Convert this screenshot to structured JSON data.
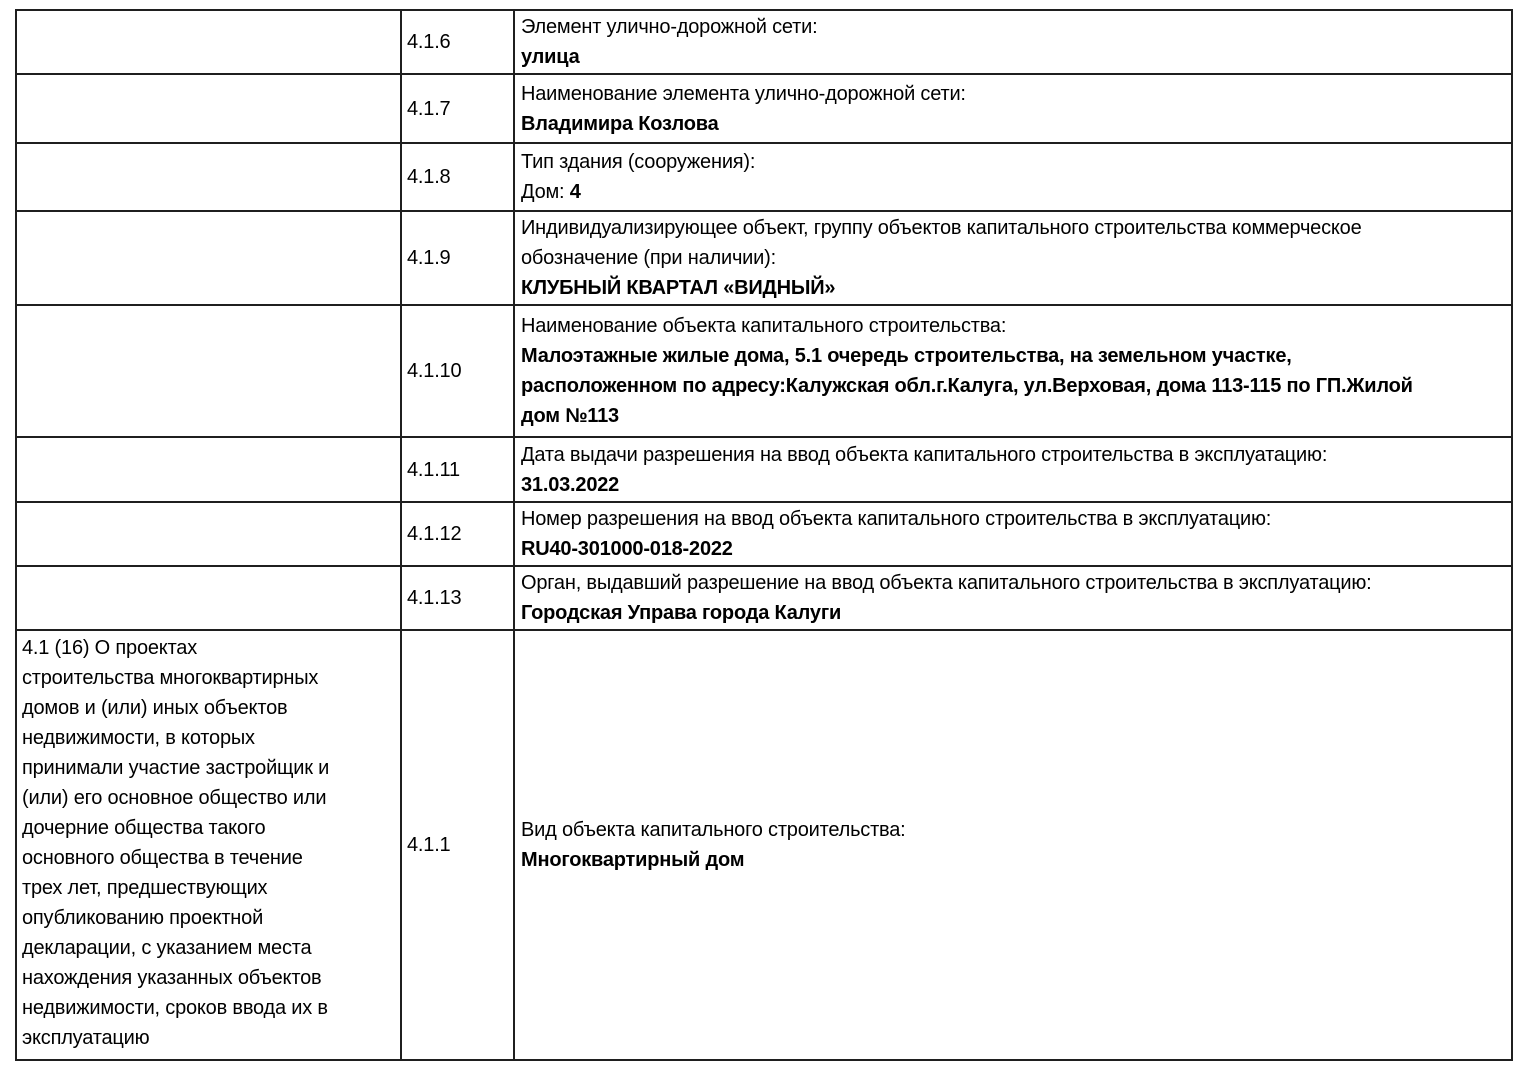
{
  "colors": {
    "text": "#000000",
    "border": "#1f1f1f",
    "background": "#ffffff"
  },
  "table": {
    "rows": [
      {
        "section": "",
        "code": "4.1.6",
        "label": "Элемент улично-дорожной сети:",
        "value_prefix": "",
        "value": "улица"
      },
      {
        "section": "",
        "code": "4.1.7",
        "label": "Наименование элемента улично-дорожной сети:",
        "value_prefix": "",
        "value": "Владимира Козлова"
      },
      {
        "section": "",
        "code": "4.1.8",
        "label": "Тип здания (сооружения):",
        "value_prefix": "Дом: ",
        "value": "4"
      },
      {
        "section": "",
        "code": "4.1.9",
        "label": "Индивидуализирующее объект, группу объектов капитального строительства коммерческое\nобозначение (при наличии):",
        "value_prefix": "",
        "value": "КЛУБНЫЙ КВАРТАЛ «ВИДНЫЙ»"
      },
      {
        "section": "",
        "code": "4.1.10",
        "label": "Наименование объекта капитального строительства:",
        "value_prefix": "",
        "value": "Малоэтажные жилые дома, 5.1 очередь строительства, на земельном участке,\nрасположенном по адресу:Калужская обл.г.Калуга, ул.Верховая, дома 113-115 по ГП.Жилой\nдом №113"
      },
      {
        "section": "",
        "code": "4.1.11",
        "label": "Дата выдачи разрешения на ввод объекта капитального строительства в эксплуатацию:",
        "value_prefix": "",
        "value": "31.03.2022"
      },
      {
        "section": "",
        "code": "4.1.12",
        "label": "Номер разрешения на ввод объекта капитального строительства в эксплуатацию:",
        "value_prefix": "",
        "value": "RU40-301000-018-2022"
      },
      {
        "section": "",
        "code": "4.1.13",
        "label": "Орган, выдавший разрешение на ввод объекта капитального строительства в эксплуатацию:",
        "value_prefix": "",
        "value": "Городская Управа города Калуги"
      },
      {
        "section": "4.1 (16) О проектах\nстроительства многоквартирных\nдомов и (или) иных объектов\nнедвижимости, в которых\nпринимали участие застройщик и\n(или) его основное общество или\nдочерние общества такого\nосновного общества в течение\nтрех лет, предшествующих\nопубликованию проектной\nдекларации, с указанием места\nнахождения указанных объектов\nнедвижимости, сроков ввода их в\nэксплуатацию",
        "code": "4.1.1",
        "label": "Вид объекта капитального строительства:",
        "value_prefix": "",
        "value": "Многоквартирный дом"
      }
    ]
  }
}
